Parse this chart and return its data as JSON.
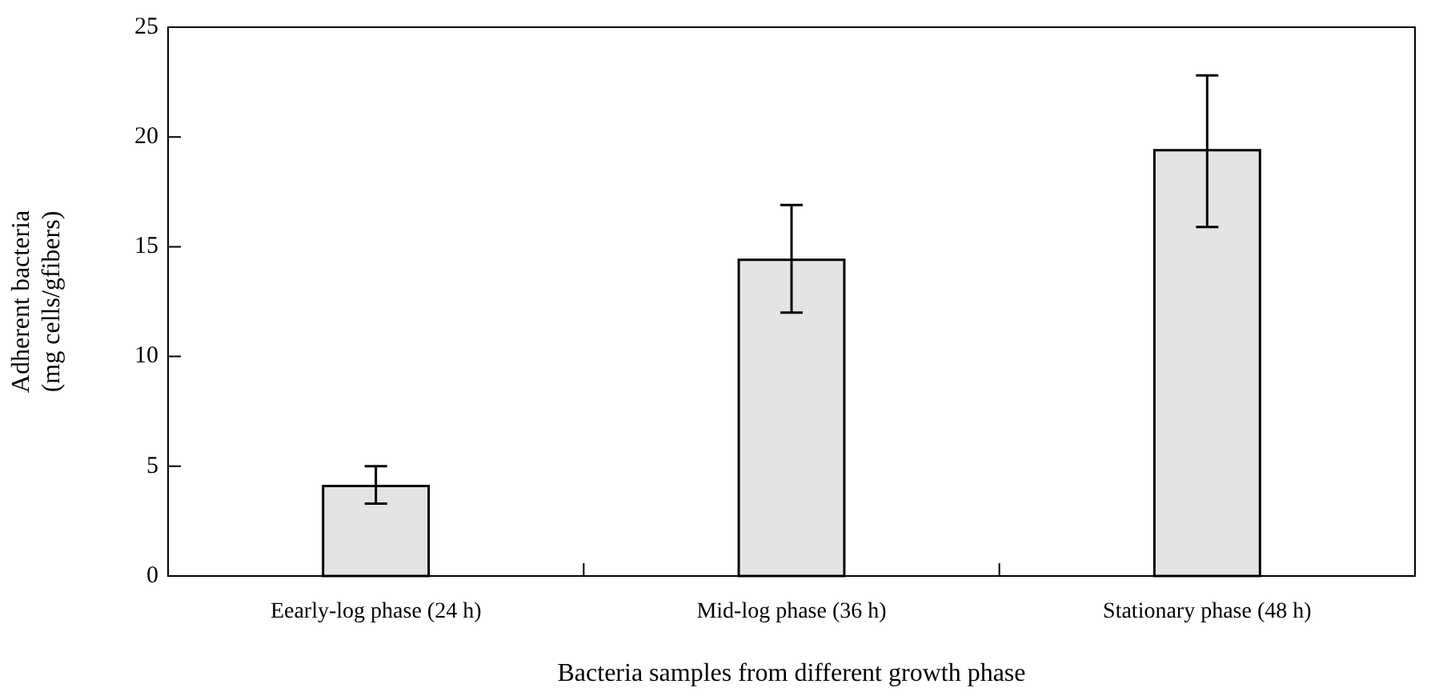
{
  "chart_data": {
    "type": "bar",
    "xlabel": "Bacteria samples from different growth phase",
    "ylabel": "Adherent bacteria\n(mg cells/gfibers)",
    "categories": [
      "Eearly-log phase (24 h)",
      "Mid-log phase (36 h)",
      "Stationary phase (48 h)"
    ],
    "values": [
      4.1,
      14.4,
      19.4
    ],
    "errors": [
      [
        3.3,
        5.0
      ],
      [
        12.0,
        16.9
      ],
      [
        15.9,
        22.8
      ]
    ],
    "color": "#e4e4e4",
    "ylim": [
      0,
      25
    ],
    "yticks": [
      0,
      5,
      10,
      15,
      20,
      25
    ],
    "grid": false,
    "legend": false
  }
}
